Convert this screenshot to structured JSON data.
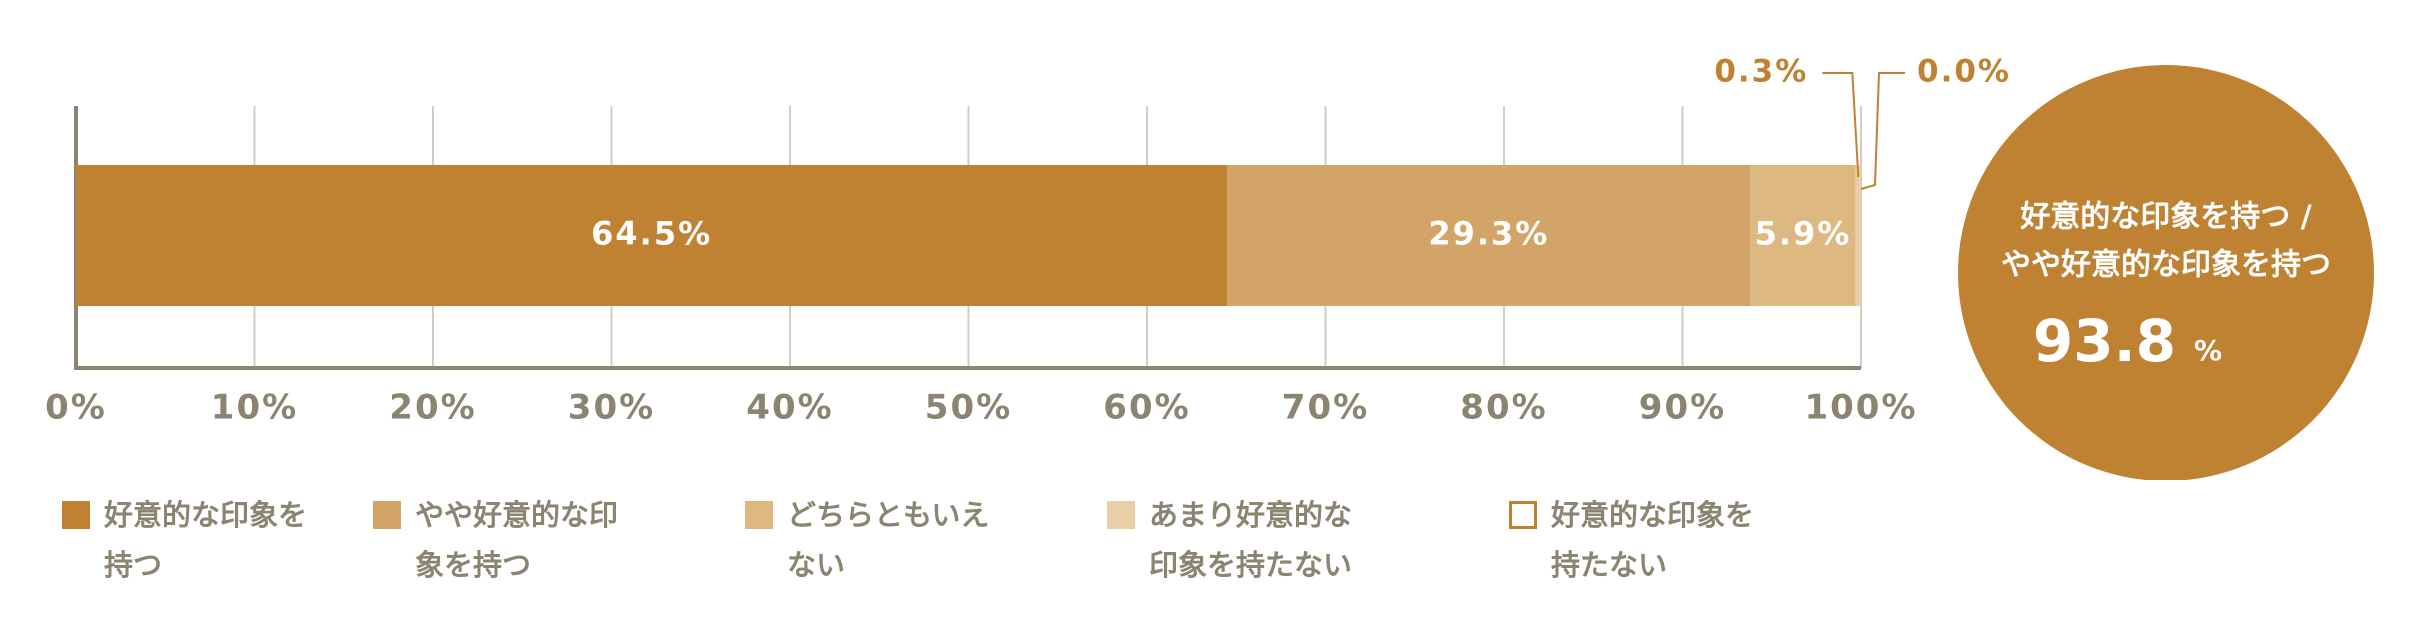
{
  "chart_data": {
    "type": "stacked_hbar",
    "series": [
      {
        "name": "好意的な印象を持つ",
        "color": "#bf8232",
        "values": [
          64.5
        ],
        "value_labels": [
          "64.5%"
        ]
      },
      {
        "name": "やや好意的な印象を持つ",
        "color": "#d2a467",
        "values": [
          29.3
        ],
        "value_labels": [
          "29.3%"
        ]
      },
      {
        "name": "どちらともいえない",
        "color": "#ddb880",
        "values": [
          5.9
        ],
        "value_labels": [
          "5.9%"
        ]
      },
      {
        "name": "あまり好意的な印象を持たない",
        "color": "#e8cfa8",
        "values": [
          0.3
        ],
        "value_labels": [
          "0.3%"
        ]
      },
      {
        "name": "好意的な印象を持たない",
        "color": "#ffffff",
        "values": [
          0.0
        ],
        "value_labels": [
          "0.0%"
        ]
      }
    ],
    "xlim": [
      0,
      100
    ],
    "xticks": [
      {
        "value": 0,
        "label": "0%"
      },
      {
        "value": 10,
        "label": "10%"
      },
      {
        "value": 20,
        "label": "20%"
      },
      {
        "value": 30,
        "label": "30%"
      },
      {
        "value": 40,
        "label": "40%"
      },
      {
        "value": 50,
        "label": "50%"
      },
      {
        "value": 60,
        "label": "60%"
      },
      {
        "value": 70,
        "label": "70%"
      },
      {
        "value": 80,
        "label": "80%"
      },
      {
        "value": 90,
        "label": "90%"
      },
      {
        "value": 100,
        "label": "100%"
      }
    ],
    "grid": true,
    "summary": {
      "lines": [
        "好意的な印象を持つ /",
        "やや好意的な印象を持つ"
      ],
      "value": 93.8,
      "unit": "%",
      "color": "#bf8232"
    }
  }
}
